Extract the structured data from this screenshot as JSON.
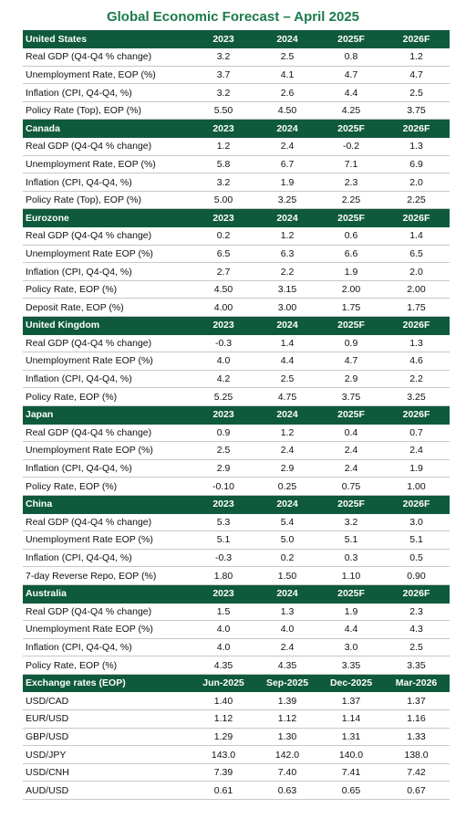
{
  "title": "Global Economic Forecast – April 2025",
  "sections": [
    {
      "header": [
        "United States",
        "2023",
        "2024",
        "2025F",
        "2026F"
      ],
      "rows": [
        [
          "Real GDP (Q4-Q4 % change)",
          "3.2",
          "2.5",
          "0.8",
          "1.2"
        ],
        [
          "Unemployment Rate, EOP (%)",
          "3.7",
          "4.1",
          "4.7",
          "4.7"
        ],
        [
          "Inflation (CPI, Q4-Q4, %)",
          "3.2",
          "2.6",
          "4.4",
          "2.5"
        ],
        [
          "Policy Rate (Top), EOP (%)",
          "5.50",
          "4.50",
          "4.25",
          "3.75"
        ]
      ]
    },
    {
      "header": [
        "Canada",
        "2023",
        "2024",
        "2025F",
        "2026F"
      ],
      "rows": [
        [
          "Real GDP (Q4-Q4 % change)",
          "1.2",
          "2.4",
          "-0.2",
          "1.3"
        ],
        [
          "Unemployment Rate, EOP (%)",
          "5.8",
          "6.7",
          "7.1",
          "6.9"
        ],
        [
          "Inflation (CPI, Q4-Q4, %)",
          "3.2",
          "1.9",
          "2.3",
          "2.0"
        ],
        [
          "Policy Rate (Top), EOP (%)",
          "5.00",
          "3.25",
          "2.25",
          "2.25"
        ]
      ]
    },
    {
      "header": [
        "Eurozone",
        "2023",
        "2024",
        "2025F",
        "2026F"
      ],
      "rows": [
        [
          "Real GDP (Q4-Q4 % change)",
          "0.2",
          "1.2",
          "0.6",
          "1.4"
        ],
        [
          "Unemployment Rate EOP (%)",
          "6.5",
          "6.3",
          "6.6",
          "6.5"
        ],
        [
          "Inflation (CPI, Q4-Q4, %)",
          "2.7",
          "2.2",
          "1.9",
          "2.0"
        ],
        [
          "Policy Rate, EOP (%)",
          "4.50",
          "3.15",
          "2.00",
          "2.00"
        ],
        [
          "Deposit Rate, EOP (%)",
          "4.00",
          "3.00",
          "1.75",
          "1.75"
        ]
      ]
    },
    {
      "header": [
        "United Kingdom",
        "2023",
        "2024",
        "2025F",
        "2026F"
      ],
      "rows": [
        [
          "Real GDP (Q4-Q4 % change)",
          "-0.3",
          "1.4",
          "0.9",
          "1.3"
        ],
        [
          "Unemployment Rate EOP (%)",
          "4.0",
          "4.4",
          "4.7",
          "4.6"
        ],
        [
          "Inflation (CPI, Q4-Q4, %)",
          "4.2",
          "2.5",
          "2.9",
          "2.2"
        ],
        [
          "Policy Rate, EOP (%)",
          "5.25",
          "4.75",
          "3.75",
          "3.25"
        ]
      ]
    },
    {
      "header": [
        "Japan",
        "2023",
        "2024",
        "2025F",
        "2026F"
      ],
      "rows": [
        [
          "Real GDP (Q4-Q4 % change)",
          "0.9",
          "1.2",
          "0.4",
          "0.7"
        ],
        [
          "Unemployment Rate EOP (%)",
          "2.5",
          "2.4",
          "2.4",
          "2.4"
        ],
        [
          "Inflation (CPI, Q4-Q4, %)",
          "2.9",
          "2.9",
          "2.4",
          "1.9"
        ],
        [
          "Policy Rate, EOP (%)",
          "-0.10",
          "0.25",
          "0.75",
          "1.00"
        ]
      ]
    },
    {
      "header": [
        "China",
        "2023",
        "2024",
        "2025F",
        "2026F"
      ],
      "rows": [
        [
          "Real GDP (Q4-Q4 % change)",
          "5.3",
          "5.4",
          "3.2",
          "3.0"
        ],
        [
          "Unemployment Rate EOP (%)",
          "5.1",
          "5.0",
          "5.1",
          "5.1"
        ],
        [
          "Inflation (CPI, Q4-Q4, %)",
          "-0.3",
          "0.2",
          "0.3",
          "0.5"
        ],
        [
          "7-day Reverse Repo, EOP (%)",
          "1.80",
          "1.50",
          "1.10",
          "0.90"
        ]
      ]
    },
    {
      "header": [
        "Australia",
        "2023",
        "2024",
        "2025F",
        "2026F"
      ],
      "rows": [
        [
          "Real GDP (Q4-Q4 % change)",
          "1.5",
          "1.3",
          "1.9",
          "2.3"
        ],
        [
          "Unemployment Rate EOP (%)",
          "4.0",
          "4.0",
          "4.4",
          "4.3"
        ],
        [
          "Inflation (CPI, Q4-Q4, %)",
          "4.0",
          "2.4",
          "3.0",
          "2.5"
        ],
        [
          "Policy Rate, EOP (%)",
          "4.35",
          "4.35",
          "3.35",
          "3.35"
        ]
      ]
    },
    {
      "header": [
        "Exchange rates (EOP)",
        "Jun-2025",
        "Sep-2025",
        "Dec-2025",
        "Mar-2026"
      ],
      "rows": [
        [
          "USD/CAD",
          "1.40",
          "1.39",
          "1.37",
          "1.37"
        ],
        [
          "EUR/USD",
          "1.12",
          "1.12",
          "1.14",
          "1.16"
        ],
        [
          "GBP/USD",
          "1.29",
          "1.30",
          "1.31",
          "1.33"
        ],
        [
          "USD/JPY",
          "143.0",
          "142.0",
          "140.0",
          "138.0"
        ],
        [
          "USD/CNH",
          "7.39",
          "7.40",
          "7.41",
          "7.42"
        ],
        [
          "AUD/USD",
          "0.61",
          "0.63",
          "0.65",
          "0.67"
        ]
      ]
    }
  ]
}
